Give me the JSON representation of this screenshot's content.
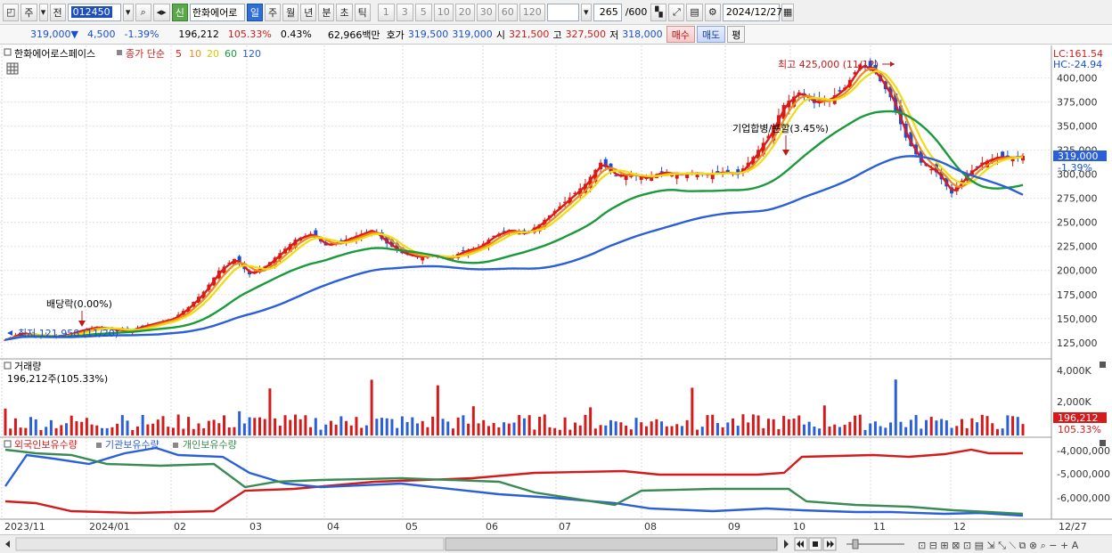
{
  "toolbar": {
    "cycle_label": "주",
    "prev_label": "전",
    "code": "012450",
    "new_badge": "신",
    "stock_name": "한화에어로",
    "periods": [
      "일",
      "주",
      "월",
      "년",
      "분",
      "초",
      "틱"
    ],
    "intervals": [
      "1",
      "3",
      "5",
      "10",
      "20",
      "30",
      "60",
      "120"
    ],
    "count": "265",
    "count_total": "/600",
    "date": "2024/12/27"
  },
  "quote": {
    "price": "319,000",
    "arrow": "▼",
    "change": "4,500",
    "change_pct": "-1.39%",
    "volume": "196,212",
    "volume_ratio": "105.33%",
    "turnover_pct": "0.43%",
    "amount": "62,966백만",
    "ask_label": "호가",
    "ask1": "319,500",
    "ask2": "319,000",
    "open_label": "시",
    "open": "321,500",
    "high_label": "고",
    "high": "327,500",
    "low_label": "저",
    "low": "318,000",
    "buy_label": "매수",
    "sell_label": "매도",
    "even_label": "평"
  },
  "legend": {
    "name": "한화에어로스페이스",
    "indicator": "종가 단순",
    "ma": [
      {
        "period": "5",
        "color": "#e01818"
      },
      {
        "period": "10",
        "color": "#f08a1a"
      },
      {
        "period": "20",
        "color": "#e8d800"
      },
      {
        "period": "60",
        "color": "#1a9a3a"
      },
      {
        "period": "120",
        "color": "#2a5fd8"
      }
    ],
    "lc": "LC:161.54",
    "hc": "HC:-24.94"
  },
  "annotations": {
    "high_note": "최고 425,000 (11/12)",
    "merger_note": "기업합병/분할(3.45%)",
    "dividend_note": "배당락(0.00%)",
    "low_note": "최저 121,958 (11/20)"
  },
  "price_axis": {
    "labels": [
      "400,000",
      "375,000",
      "350,000",
      "325,000",
      "300,000",
      "275,000",
      "250,000",
      "225,000",
      "200,000",
      "175,000",
      "150,000",
      "125,000"
    ],
    "current": "319,000",
    "current_pct": "-1.39%"
  },
  "volume_panel": {
    "title": "거래량",
    "value": "196,212주(105.33%)",
    "axis": [
      "4,000K",
      "2,000K"
    ],
    "current": "196,212",
    "current_pct": "105.33%"
  },
  "holding_panel": {
    "series": [
      {
        "name": "외국인보유수량",
        "color": "#d41b1b"
      },
      {
        "name": "기관보유수량",
        "color": "#2a5fd8"
      },
      {
        "name": "개인보유수량",
        "color": "#3a8a55"
      }
    ],
    "axis": [
      "-4,000,000",
      "-5,000,000",
      "-6,000,000"
    ]
  },
  "time_axis": {
    "labels": [
      "2023/11",
      "2024/01",
      "02",
      "03",
      "04",
      "05",
      "06",
      "07",
      "08",
      "09",
      "10",
      "11",
      "12"
    ],
    "right_label": "12/27"
  },
  "chart_data": {
    "type": "candlestick",
    "y_range": [
      110000,
      432000
    ],
    "close_path": [
      [
        0,
        128000
      ],
      [
        3,
        135000
      ],
      [
        6,
        132000
      ],
      [
        9,
        131000
      ],
      [
        12,
        133000
      ],
      [
        15,
        138000
      ],
      [
        18,
        141000
      ],
      [
        21,
        139000
      ],
      [
        24,
        137000
      ],
      [
        27,
        142000
      ],
      [
        30,
        146000
      ],
      [
        33,
        150000
      ],
      [
        36,
        162000
      ],
      [
        39,
        178000
      ],
      [
        42,
        200000
      ],
      [
        45,
        212000
      ],
      [
        48,
        196000
      ],
      [
        51,
        204000
      ],
      [
        54,
        218000
      ],
      [
        57,
        232000
      ],
      [
        60,
        238000
      ],
      [
        63,
        226000
      ],
      [
        66,
        230000
      ],
      [
        69,
        236000
      ],
      [
        72,
        242000
      ],
      [
        75,
        228000
      ],
      [
        78,
        218000
      ],
      [
        81,
        214000
      ],
      [
        84,
        216000
      ],
      [
        87,
        212000
      ],
      [
        90,
        220000
      ],
      [
        93,
        224000
      ],
      [
        96,
        236000
      ],
      [
        99,
        242000
      ],
      [
        102,
        238000
      ],
      [
        105,
        248000
      ],
      [
        108,
        262000
      ],
      [
        111,
        276000
      ],
      [
        114,
        290000
      ],
      [
        117,
        312000
      ],
      [
        120,
        298000
      ],
      [
        123,
        300000
      ],
      [
        126,
        296000
      ],
      [
        129,
        302000
      ],
      [
        132,
        300000
      ],
      [
        135,
        301000
      ],
      [
        138,
        300000
      ],
      [
        141,
        302000
      ],
      [
        144,
        300000
      ],
      [
        147,
        318000
      ],
      [
        150,
        340000
      ],
      [
        153,
        372000
      ],
      [
        156,
        385000
      ],
      [
        159,
        374000
      ],
      [
        162,
        378000
      ],
      [
        165,
        390000
      ],
      [
        168,
        414000
      ],
      [
        171,
        405000
      ],
      [
        174,
        380000
      ],
      [
        177,
        338000
      ],
      [
        180,
        312000
      ],
      [
        183,
        302000
      ],
      [
        186,
        280000
      ],
      [
        189,
        300000
      ],
      [
        192,
        312000
      ],
      [
        195,
        318000
      ],
      [
        198,
        317000
      ],
      [
        200,
        319000
      ]
    ],
    "x_points": 201
  }
}
